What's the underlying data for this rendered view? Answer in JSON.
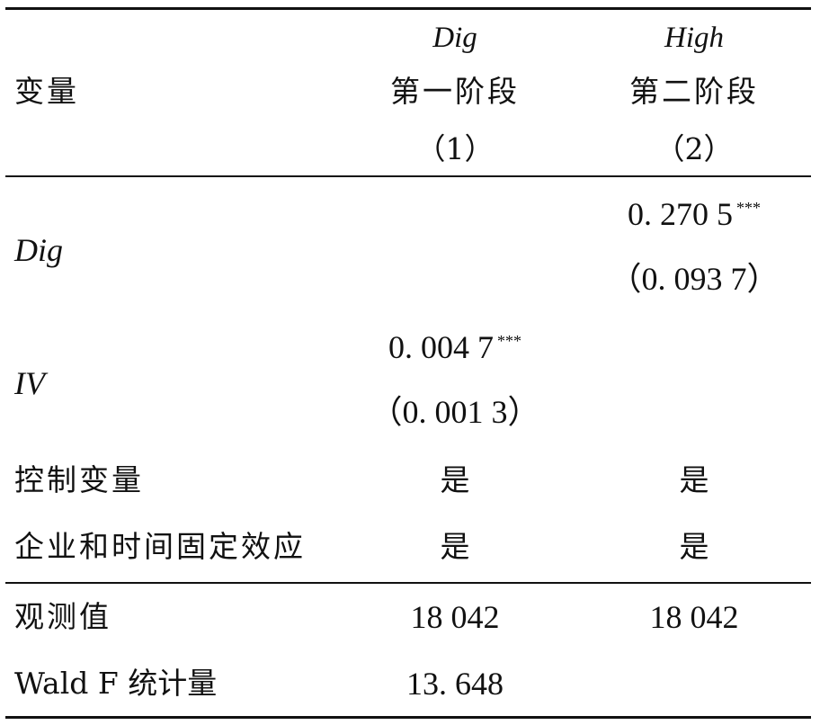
{
  "table": {
    "header": {
      "col0": "变量",
      "col1_var": "Dig",
      "col1_stage": "第一阶段",
      "col1_num": "（1）",
      "col2_var": "High",
      "col2_stage": "第二阶段",
      "col2_num": "（2）"
    },
    "rows": [
      {
        "label": "Dig",
        "col1": "",
        "col1_se": "",
        "col2": "0. 270 5",
        "col2_stars": "***",
        "col2_se": "（0. 093 7）"
      },
      {
        "label": "IV",
        "col1": "0. 004 7",
        "col1_stars": "***",
        "col1_se": "（0. 001 3）",
        "col2": "",
        "col2_se": ""
      },
      {
        "label": "控制变量",
        "col1": "是",
        "col2": "是"
      },
      {
        "label": "企业和时间固定效应",
        "col1": "是",
        "col2": "是"
      }
    ],
    "footer": [
      {
        "label": "观测值",
        "col1": "18 042",
        "col2": "18 042"
      },
      {
        "label": "Wald F 统计量",
        "col1": "13. 648",
        "col2": ""
      }
    ]
  }
}
